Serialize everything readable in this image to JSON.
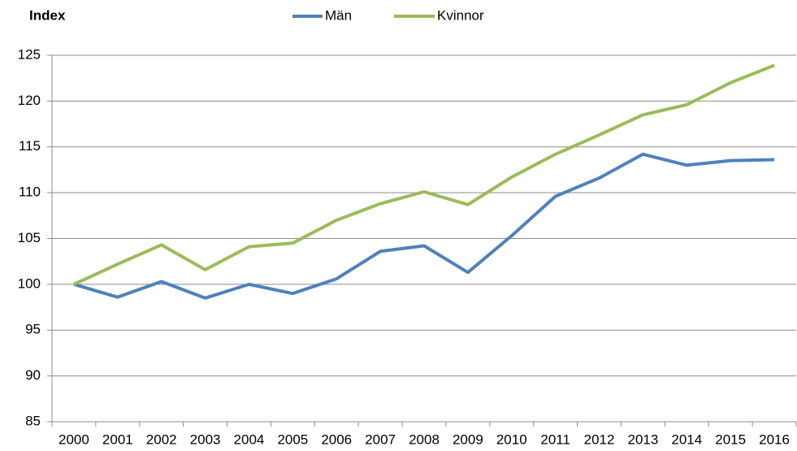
{
  "chart_data": {
    "type": "line",
    "ylabel": "Index",
    "categories": [
      "2000",
      "2001",
      "2002",
      "2003",
      "2004",
      "2005",
      "2006",
      "2007",
      "2008",
      "2009",
      "2010",
      "2011",
      "2012",
      "2013",
      "2014",
      "2015",
      "2016"
    ],
    "series": [
      {
        "name": "Män",
        "color": "#4f81bd",
        "values": [
          100,
          98.6,
          100.3,
          98.5,
          100,
          99,
          100.6,
          103.6,
          104.2,
          101.3,
          105.3,
          109.6,
          111.6,
          114.2,
          113,
          113.5,
          113.6
        ]
      },
      {
        "name": "Kvinnor",
        "color": "#9bbb59",
        "values": [
          100,
          102.2,
          104.3,
          101.6,
          104.1,
          104.5,
          107,
          108.8,
          110.1,
          108.7,
          111.7,
          114.2,
          116.3,
          118.5,
          119.6,
          122,
          123.9
        ]
      }
    ],
    "ylim": [
      85,
      125
    ],
    "yticks": [
      85,
      90,
      95,
      100,
      105,
      110,
      115,
      120,
      125
    ],
    "grid": true,
    "legend": "top"
  }
}
